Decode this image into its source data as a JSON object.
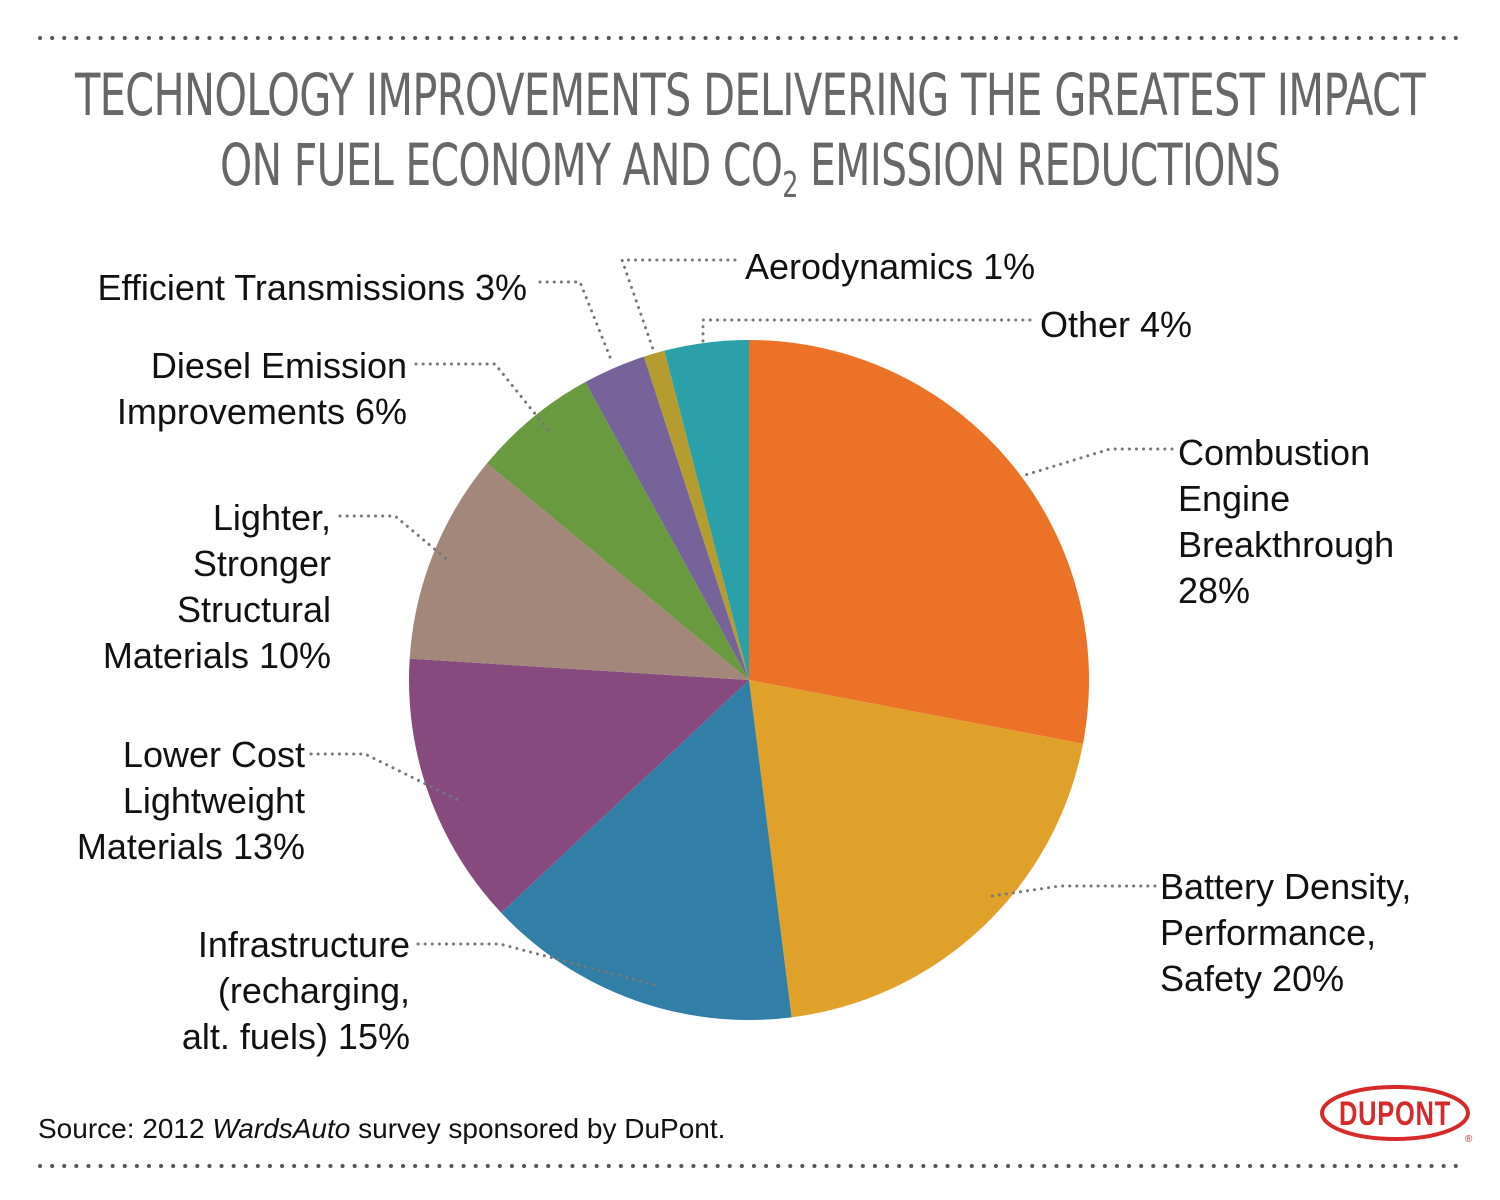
{
  "title": {
    "line1": "TECHNOLOGY IMPROVEMENTS DELIVERING THE GREATEST IMPACT",
    "line2_prefix": "ON FUEL ECONOMY AND CO",
    "line2_sub": "2",
    "line2_suffix": " EMISSION REDUCTIONS"
  },
  "chart_data": {
    "type": "pie",
    "title": "TECHNOLOGY IMPROVEMENTS DELIVERING THE GREATEST IMPACT ON FUEL ECONOMY AND CO2 EMISSION REDUCTIONS",
    "start": "12 o'clock, clockwise",
    "slices": [
      {
        "name": "Combustion Engine Breakthrough",
        "value": 28,
        "color": "#ec7228",
        "label_lines": [
          "Combustion",
          "Engine",
          "Breakthrough",
          "28%"
        ]
      },
      {
        "name": "Battery Density, Performance, Safety",
        "value": 20,
        "color": "#e0a12a",
        "label_lines": [
          "Battery Density,",
          "Performance,",
          "Safety 20%"
        ]
      },
      {
        "name": "Infrastructure (recharging, alt. fuels)",
        "value": 15,
        "color": "#317ea6",
        "label_lines": [
          "Infrastructure",
          "(recharging,",
          "alt. fuels) 15%"
        ]
      },
      {
        "name": "Lower Cost Lightweight Materials",
        "value": 13,
        "color": "#874a7f",
        "label_lines": [
          "Lower Cost",
          "Lightweight",
          "Materials 13%"
        ]
      },
      {
        "name": "Lighter, Stronger Structural Materials",
        "value": 10,
        "color": "#a2877a",
        "label_lines": [
          "Lighter,",
          "Stronger",
          "Structural",
          "Materials 10%"
        ]
      },
      {
        "name": "Diesel Emission Improvements",
        "value": 6,
        "color": "#6a9a40",
        "label_lines": [
          "Diesel Emission",
          "Improvements 6%"
        ]
      },
      {
        "name": "Efficient Transmissions",
        "value": 3,
        "color": "#766399",
        "label_lines": [
          "Efficient Transmissions 3%"
        ]
      },
      {
        "name": "Aerodynamics",
        "value": 1,
        "color": "#b59c30",
        "label_lines": [
          "Aerodynamics 1%"
        ]
      },
      {
        "name": "Other",
        "value": 4,
        "color": "#2ba0a8",
        "label_lines": [
          "Other 4%"
        ]
      }
    ]
  },
  "source": {
    "prefix": "Source: 2012 ",
    "italic": "WardsAuto",
    "suffix": " survey sponsored by DuPont."
  },
  "logo": {
    "text": "DUPONT",
    "color": "#d62a2a"
  }
}
